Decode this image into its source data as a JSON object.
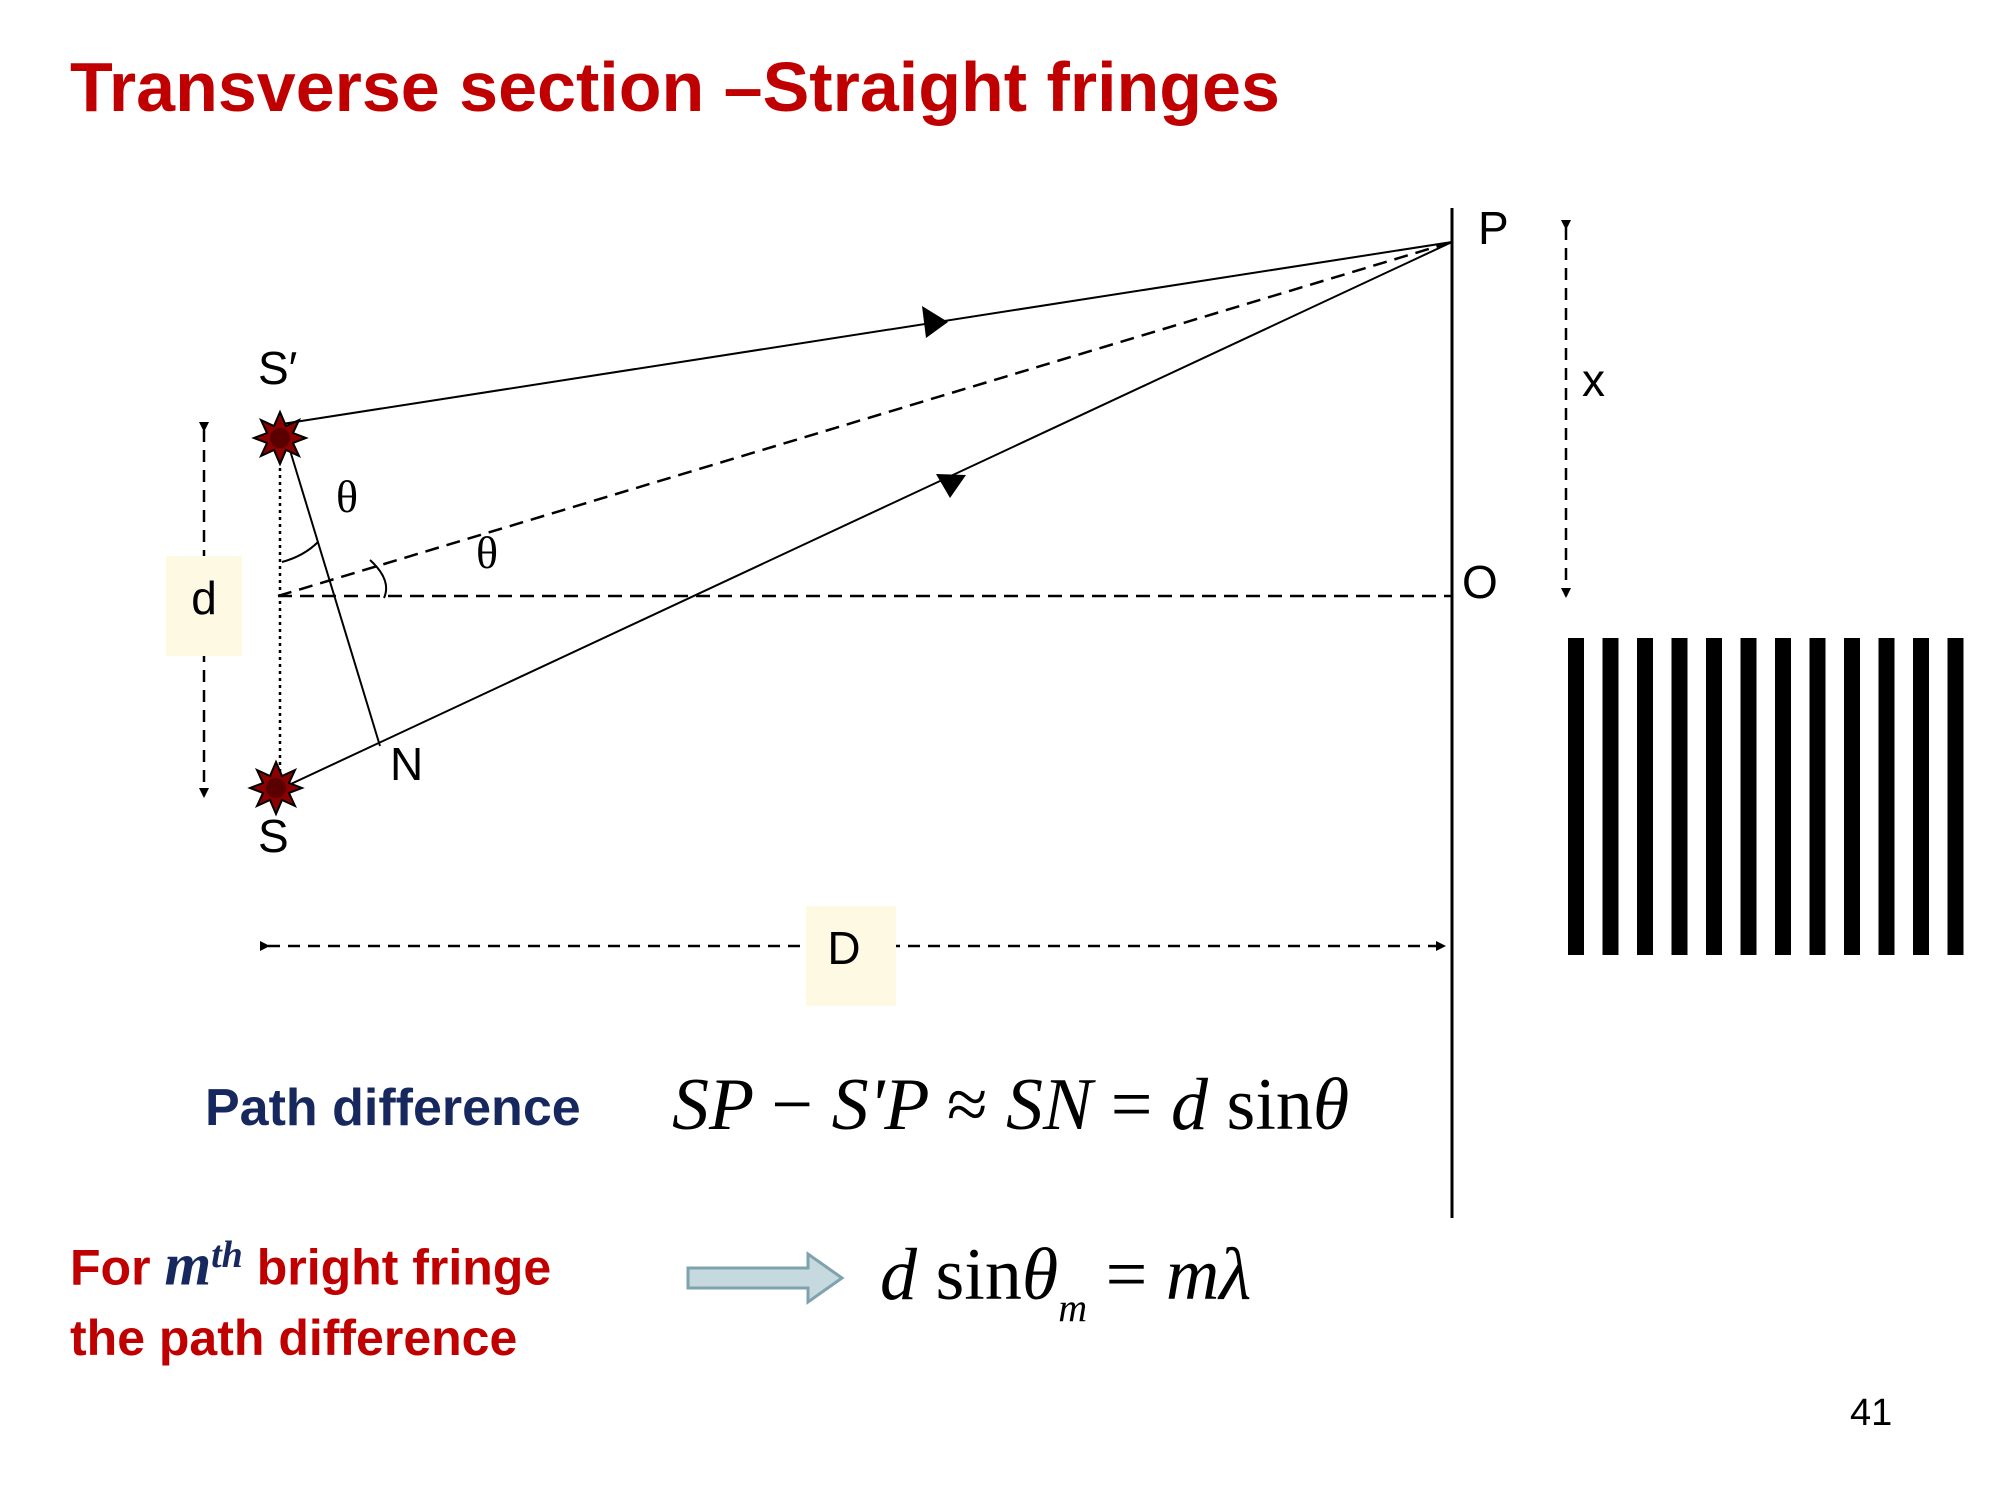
{
  "title": "Transverse section –Straight fringes",
  "diagram": {
    "labels": {
      "s_prime": "S′",
      "s": "S",
      "n": "N",
      "p": "P",
      "o": "O",
      "x": "x",
      "d": "d",
      "big_d": "D",
      "theta_top": "θ",
      "theta_mid": "θ"
    },
    "fringe_count": 12,
    "colors": {
      "source": "#8b0000",
      "label_box": "#fdf9e3"
    }
  },
  "path_difference": {
    "label": "Path difference",
    "equation_left": "SP",
    "equation_minus": "−",
    "equation_sp": "S'P",
    "equation_approx": "≈",
    "equation_sn": "SN",
    "equation_eq": "=",
    "equation_d": "d",
    "equation_sin": "sin",
    "equation_theta": "θ"
  },
  "bright_fringe": {
    "line1_prefix": "For",
    "m": "m",
    "sup": "th",
    "line1_suffix": "bright fringe",
    "line2": "the path difference",
    "equation_d": "d",
    "equation_sin": "sin",
    "equation_theta": "θ",
    "equation_sub": "m",
    "equation_eq": "=",
    "equation_rhs": "mλ"
  },
  "page_number": "41"
}
